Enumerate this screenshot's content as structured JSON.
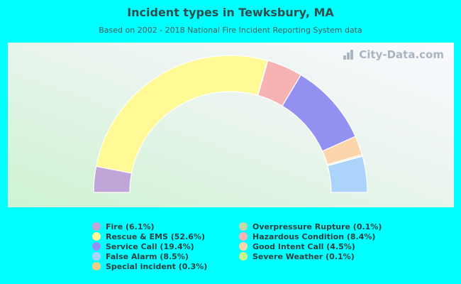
{
  "title": "Incident types in Tewksbury, MA",
  "subtitle": "Based on 2002 - 2018 National Fire Incident Reporting System data",
  "watermark": "City-Data.com",
  "chart_data": {
    "type": "pie",
    "variant": "semi-donut",
    "title": "Incident types in Tewksbury, MA",
    "subtitle": "Based on 2002 - 2018 National Fire Incident Reporting System data",
    "legend_position": "bottom",
    "slices": [
      {
        "name": "Fire",
        "label": "Fire (6.1%)",
        "value": 6.1,
        "color": "#c0a6d8"
      },
      {
        "name": "Rescue & EMS",
        "label": "Rescue & EMS (52.6%)",
        "value": 52.6,
        "color": "#fffa96"
      },
      {
        "name": "Overpressure Rupture",
        "label": "Overpressure Rupture (0.1%)",
        "value": 0.1,
        "color": "#c2d8a8"
      },
      {
        "name": "Hazardous Condition",
        "label": "Hazardous Condition (8.4%)",
        "value": 8.4,
        "color": "#f7b2b4"
      },
      {
        "name": "Service Call",
        "label": "Service Call (19.4%)",
        "value": 19.4,
        "color": "#9290f0"
      },
      {
        "name": "Good Intent Call",
        "label": "Good Intent Call (4.5%)",
        "value": 4.5,
        "color": "#fdd5aa"
      },
      {
        "name": "Special incident",
        "label": "Special incident (0.3%)",
        "value": 0.3,
        "color": "#f3cc84"
      },
      {
        "name": "Severe Weather",
        "label": "Severe Weather (0.1%)",
        "value": 0.1,
        "color": "#c8f58c"
      },
      {
        "name": "False Alarm",
        "label": "False Alarm (8.5%)",
        "value": 8.5,
        "color": "#acd4fb"
      }
    ],
    "legend_order": [
      "Fire",
      "Rescue & EMS",
      "Service Call",
      "False Alarm",
      "Special incident",
      "Overpressure Rupture",
      "Hazardous Condition",
      "Good Intent Call",
      "Severe Weather"
    ]
  }
}
